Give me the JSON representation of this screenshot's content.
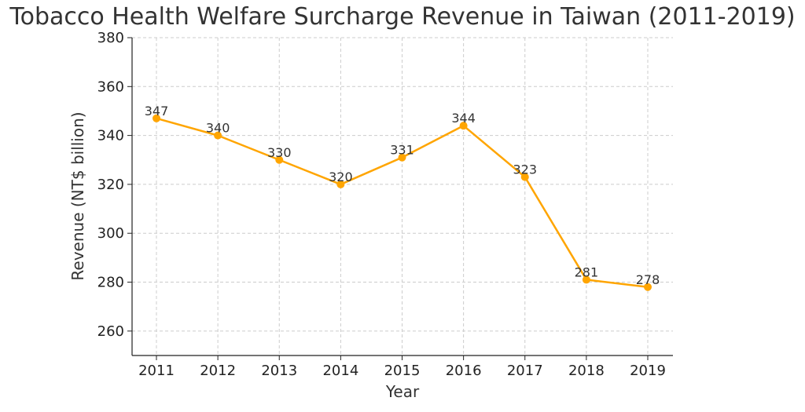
{
  "chart_data": {
    "type": "line",
    "title": "Tobacco Health Welfare Surcharge Revenue in Taiwan (2011-2019)",
    "xlabel": "Year",
    "ylabel": "Revenue (NT$ billion)",
    "categories": [
      "2011",
      "2012",
      "2013",
      "2014",
      "2015",
      "2016",
      "2017",
      "2018",
      "2019"
    ],
    "series": [
      {
        "values": [
          347,
          340,
          330,
          320,
          331,
          344,
          323,
          281,
          278
        ],
        "data_labels": [
          "347",
          "340",
          "330",
          "320",
          "331",
          "344",
          "323",
          "281",
          "278"
        ],
        "color": "#FFA500"
      }
    ],
    "ylim": [
      250,
      380
    ],
    "yticks": [
      260,
      280,
      300,
      320,
      340,
      360,
      380
    ],
    "grid": true,
    "legend": "none"
  }
}
